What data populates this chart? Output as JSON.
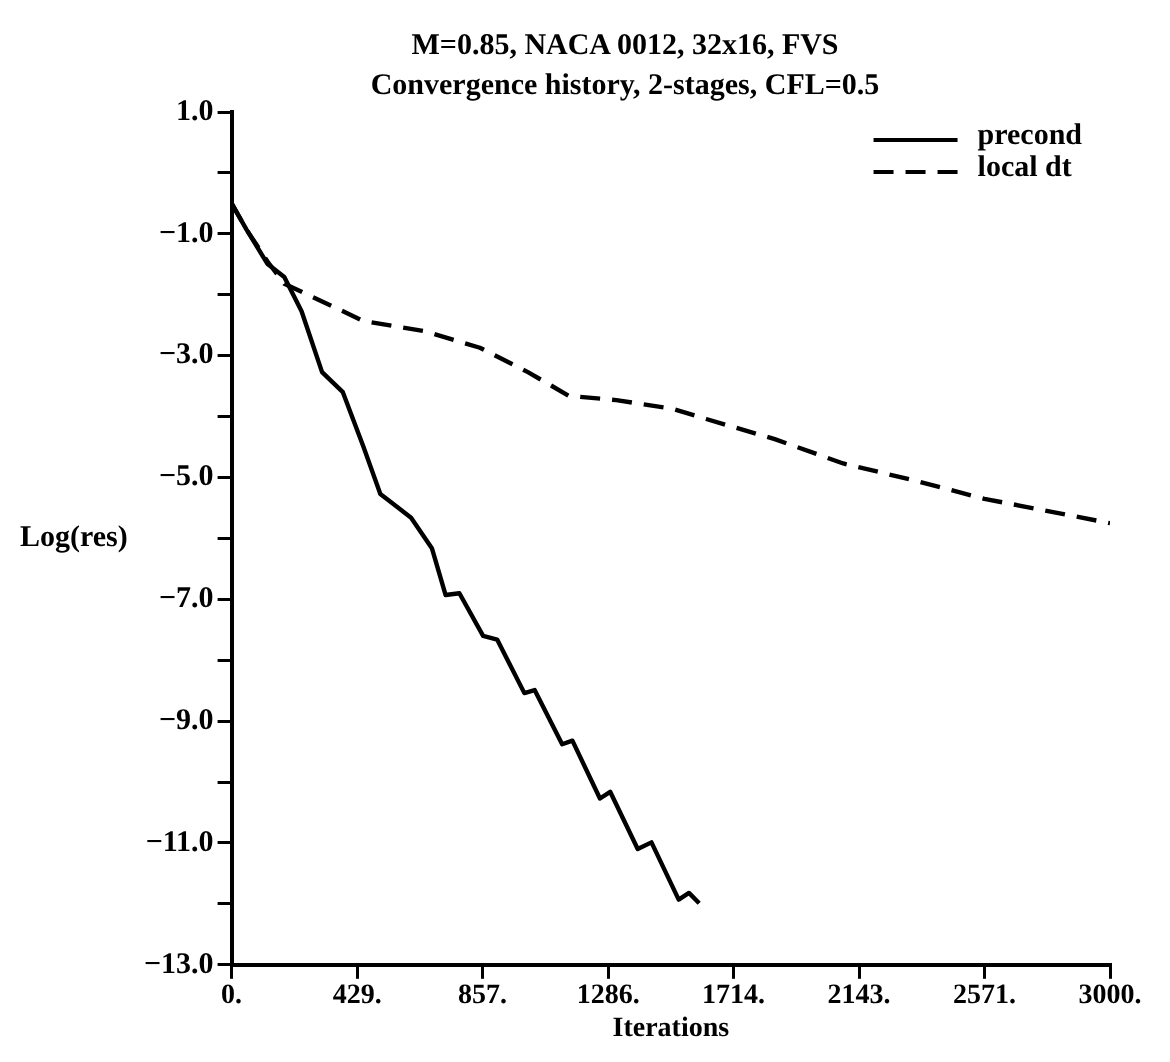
{
  "chart_data": {
    "type": "line",
    "title": "M=0.85, NACA 0012, 32x16, FVS",
    "subtitle": "Convergence history, 2-stages, CFL=0.5",
    "xlabel": "Iterations",
    "ylabel": "Log(res)",
    "xlim": [
      0,
      3000
    ],
    "ylim": [
      -13,
      1
    ],
    "xticks": [
      {
        "value": 0,
        "label": "0."
      },
      {
        "value": 429,
        "label": "429."
      },
      {
        "value": 857,
        "label": "857."
      },
      {
        "value": 1286,
        "label": "1286."
      },
      {
        "value": 1714,
        "label": "1714."
      },
      {
        "value": 2143,
        "label": "2143."
      },
      {
        "value": 2571,
        "label": "2571."
      },
      {
        "value": 3000,
        "label": "3000."
      }
    ],
    "yticks": [
      {
        "value": 1,
        "label": "1.0"
      },
      {
        "value": 0,
        "label": null
      },
      {
        "value": -1,
        "label": "−1.0"
      },
      {
        "value": -2,
        "label": null
      },
      {
        "value": -3,
        "label": "−3.0"
      },
      {
        "value": -4,
        "label": null
      },
      {
        "value": -5,
        "label": "−5.0"
      },
      {
        "value": -6,
        "label": null
      },
      {
        "value": -7,
        "label": "−7.0"
      },
      {
        "value": -8,
        "label": null
      },
      {
        "value": -9,
        "label": "−9.0"
      },
      {
        "value": -10,
        "label": null
      },
      {
        "value": -11,
        "label": "−11.0"
      },
      {
        "value": -12,
        "label": null
      },
      {
        "value": -13,
        "label": "−13.0"
      }
    ],
    "grid": false,
    "legend": "top right",
    "marker": "none",
    "series": [
      {
        "name": "precond",
        "color": "#000000",
        "line_style": "solid",
        "x": [
          0,
          51,
          122,
          180,
          239,
          309,
          380,
          450,
          508,
          613,
          684,
          731,
          778,
          859,
          907,
          1000,
          1035,
          1129,
          1164,
          1258,
          1293,
          1387,
          1434,
          1527,
          1562,
          1597
        ],
        "values": [
          -0.5,
          -0.93,
          -1.49,
          -1.71,
          -2.27,
          -3.27,
          -3.6,
          -4.49,
          -5.27,
          -5.66,
          -6.16,
          -6.93,
          -6.9,
          -7.6,
          -7.66,
          -8.54,
          -8.49,
          -9.38,
          -9.32,
          -10.27,
          -10.16,
          -11.1,
          -10.99,
          -11.93,
          -11.82,
          -11.99
        ]
      },
      {
        "name": "local dt",
        "color": "#000000",
        "line_style": "dashed",
        "x": [
          0,
          51,
          122,
          180,
          239,
          450,
          661,
          848,
          1012,
          1152,
          1314,
          1504,
          1621,
          1855,
          2089,
          2324,
          2571,
          3000
        ],
        "values": [
          -0.5,
          -0.93,
          -1.45,
          -1.82,
          -1.95,
          -2.43,
          -2.6,
          -2.87,
          -3.27,
          -3.66,
          -3.73,
          -3.87,
          -4.04,
          -4.37,
          -4.77,
          -5.04,
          -5.35,
          -5.75
        ]
      }
    ]
  }
}
